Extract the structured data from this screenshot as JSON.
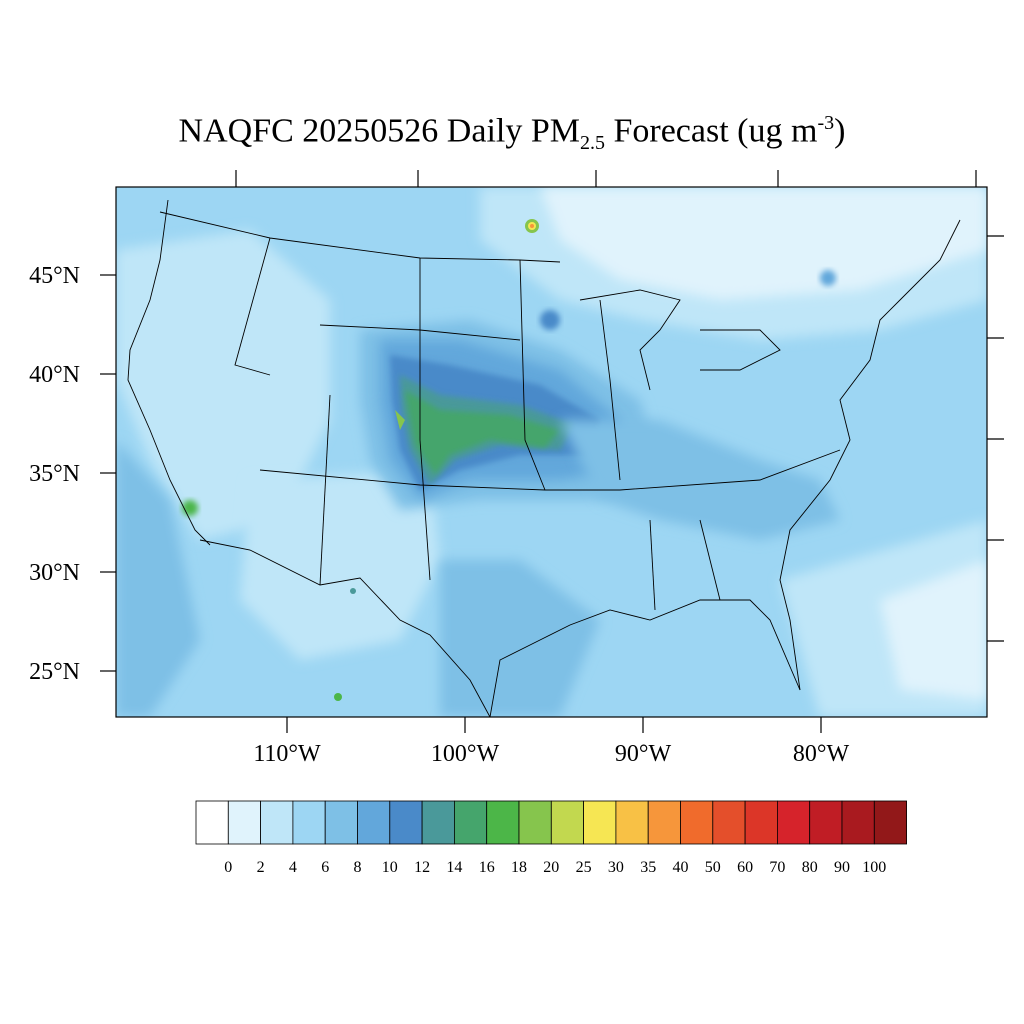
{
  "title": {
    "prefix": "NAQFC 20250526 Daily PM",
    "subscript": "2.5",
    "mid": " Forecast (ug m",
    "superscript": "-3",
    "suffix": ")"
  },
  "map": {
    "lat_labels": [
      "45°N",
      "40°N",
      "35°N",
      "30°N",
      "25°N"
    ],
    "lon_labels": [
      "110°W",
      "100°W",
      "90°W",
      "80°W"
    ]
  },
  "colorbar": {
    "labels": [
      "0",
      "2",
      "4",
      "6",
      "8",
      "10",
      "12",
      "14",
      "16",
      "18",
      "20",
      "25",
      "30",
      "35",
      "40",
      "50",
      "60",
      "70",
      "80",
      "90",
      "100"
    ],
    "colors": [
      "#ffffff",
      "#e0f3fc",
      "#bfe6f8",
      "#9dd6f3",
      "#7ec0e6",
      "#62a7db",
      "#4a8ac9",
      "#4a999a",
      "#45a56c",
      "#4cb648",
      "#86c54d",
      "#c2d84f",
      "#f6e653",
      "#f8c145",
      "#f6963b",
      "#f06b2c",
      "#e44f2b",
      "#dc3628",
      "#d6232b",
      "#c01d25",
      "#a91a1f",
      "#921819"
    ]
  }
}
